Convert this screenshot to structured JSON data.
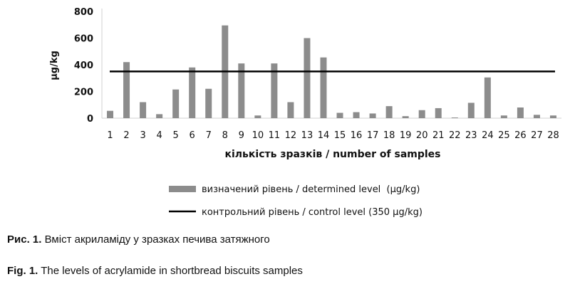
{
  "chart_data": {
    "type": "bar",
    "xlabel": "кількість зразків / number of samples",
    "ylabel": "μg/kg",
    "ylim": [
      0,
      800
    ],
    "yticks": [
      0,
      200,
      400,
      600,
      800
    ],
    "grid": false,
    "legend_position": "bottom",
    "categories": [
      "1",
      "2",
      "3",
      "4",
      "5",
      "6",
      "7",
      "8",
      "9",
      "10",
      "11",
      "12",
      "13",
      "14",
      "15",
      "16",
      "17",
      "18",
      "19",
      "20",
      "21",
      "22",
      "23",
      "24",
      "25",
      "26",
      "27",
      "28"
    ],
    "series": [
      {
        "name": "визначений рівень / determined level  (μg/kg)",
        "color": "#8c8c8c",
        "values": [
          55,
          420,
          120,
          30,
          215,
          380,
          220,
          695,
          410,
          20,
          410,
          120,
          600,
          455,
          40,
          45,
          35,
          90,
          15,
          60,
          75,
          5,
          115,
          305,
          20,
          80,
          25,
          20
        ]
      }
    ],
    "reference_line": {
      "name": "контрольний рівень / control level (350 μg/kg)",
      "value": 350,
      "color": "#000000"
    }
  },
  "captions": {
    "uk_prefix": "Рис. 1.",
    "uk_text": " Вміст акриламіду у зразках печива затяжного",
    "en_prefix": "Fig. 1.",
    "en_text": " The levels of acrylamide in shortbread biscuits samples"
  }
}
